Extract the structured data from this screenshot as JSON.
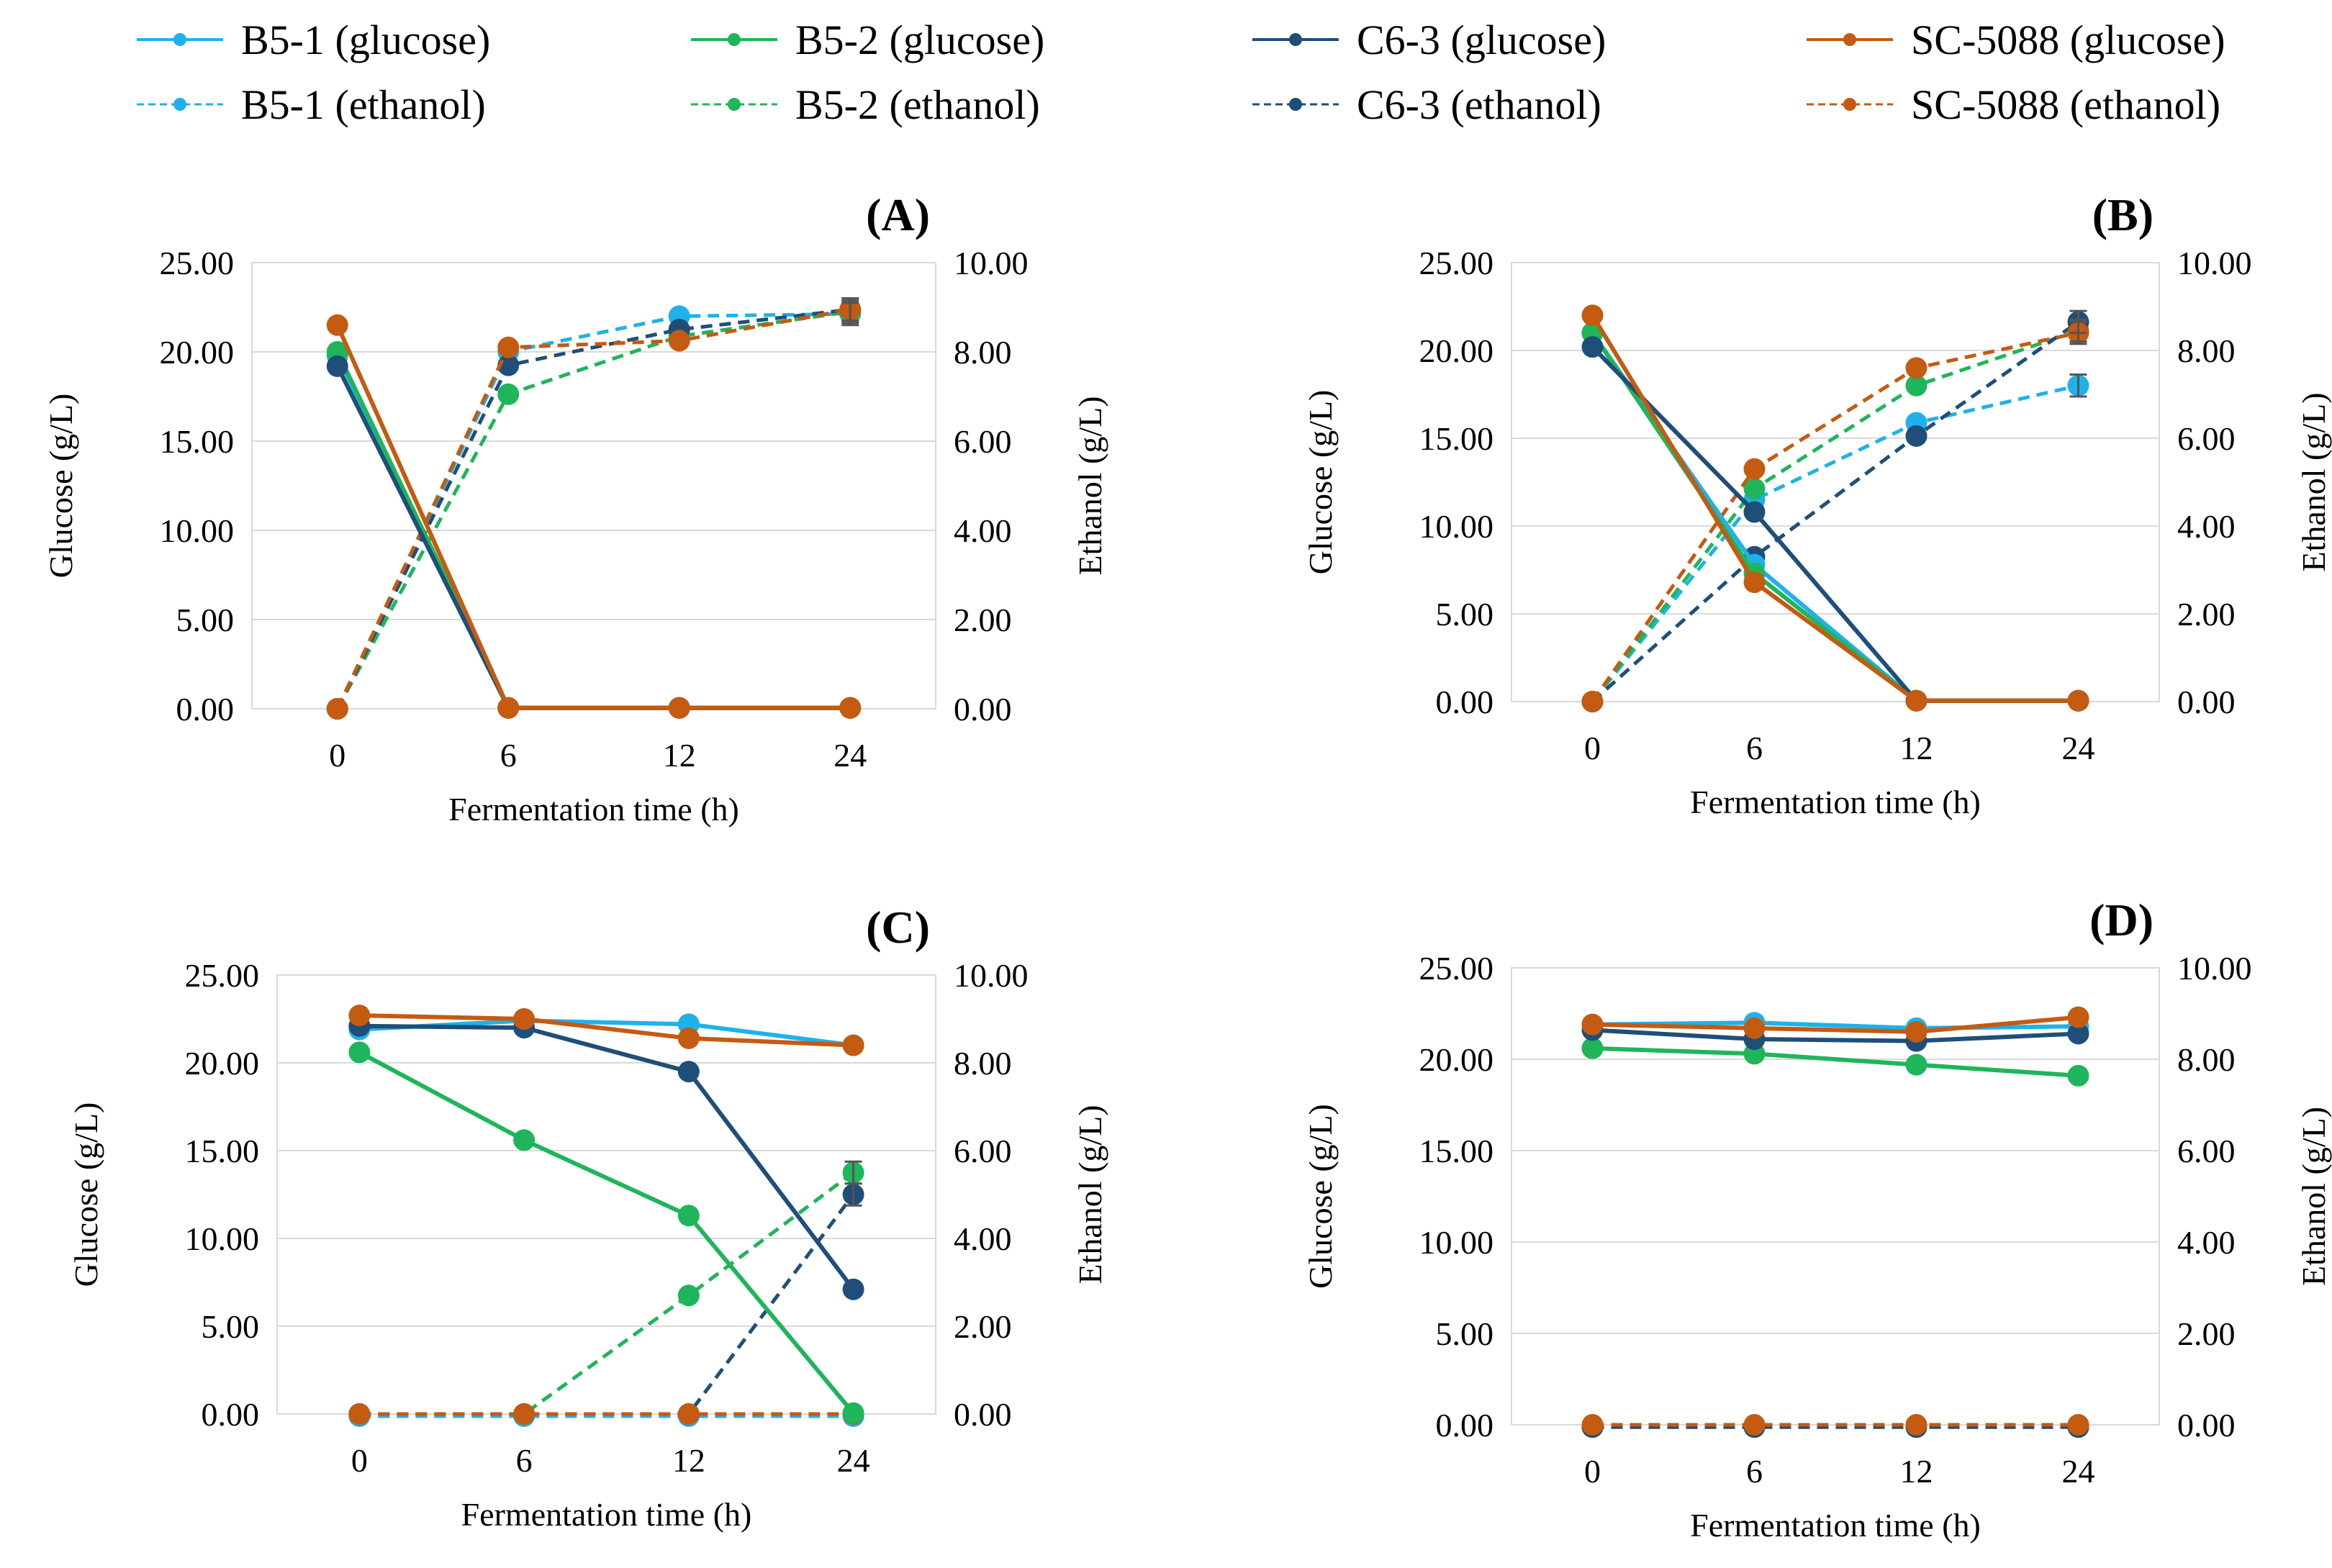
{
  "legend": [
    {
      "label": "B5-1 (glucose)",
      "color": "#1fb1ea",
      "dashed": false
    },
    {
      "label": "B5-1 (ethanol)",
      "color": "#1fb1ea",
      "dashed": true
    },
    {
      "label": "B5-2 (glucose)",
      "color": "#1fb55a",
      "dashed": false
    },
    {
      "label": "B5-2 (ethanol)",
      "color": "#1fb55a",
      "dashed": true
    },
    {
      "label": "C6-3  (glucose)",
      "color": "#1f4e79",
      "dashed": false
    },
    {
      "label": "C6-3  (ethanol)",
      "color": "#1f4e79",
      "dashed": true
    },
    {
      "label": "SC-5088 (glucose)",
      "color": "#c55a11",
      "dashed": false
    },
    {
      "label": "SC-5088 (ethanol)",
      "color": "#c55a11",
      "dashed": true
    }
  ],
  "chart_data": [
    {
      "type": "line",
      "title": "(A)",
      "categories": [
        "0",
        "6",
        "12",
        "24"
      ],
      "xlabel": "Fermentation time (h)",
      "ylabel": "Glucose (g/L)",
      "y2label": "Ethanol (g/L)",
      "ylim": [
        0,
        25
      ],
      "y2lim": [
        0,
        10
      ],
      "yticks": [
        "0.00",
        "5.00",
        "10.00",
        "15.00",
        "20.00",
        "25.00"
      ],
      "y2ticks": [
        "0.00",
        "2.00",
        "4.00",
        "6.00",
        "8.00",
        "10.00"
      ],
      "series": [
        {
          "name": "B5-1 (glucose)",
          "axis": "left",
          "values": [
            19.8,
            0.05,
            0.05,
            0.05
          ]
        },
        {
          "name": "B5-2 (glucose)",
          "axis": "left",
          "values": [
            20.0,
            0.05,
            0.05,
            0.05
          ]
        },
        {
          "name": "C6-3  (glucose)",
          "axis": "left",
          "values": [
            19.2,
            0.05,
            0.05,
            0.05
          ]
        },
        {
          "name": "SC-5088 (glucose)",
          "axis": "left",
          "values": [
            21.5,
            0.05,
            0.05,
            0.05
          ]
        },
        {
          "name": "B5-1 (ethanol)",
          "axis": "right",
          "values": [
            0.0,
            8.0,
            8.8,
            8.85
          ]
        },
        {
          "name": "B5-2 (ethanol)",
          "axis": "right",
          "values": [
            0.0,
            7.05,
            8.35,
            8.9
          ]
        },
        {
          "name": "C6-3  (ethanol)",
          "axis": "right",
          "values": [
            0.0,
            7.7,
            8.5,
            8.95
          ]
        },
        {
          "name": "SC-5088 (ethanol)",
          "axis": "right",
          "values": [
            0.0,
            8.1,
            8.25,
            8.95
          ]
        }
      ]
    },
    {
      "type": "line",
      "title": "(B)",
      "categories": [
        "0",
        "6",
        "12",
        "24"
      ],
      "xlabel": "Fermentation time (h)",
      "ylabel": "Glucose (g/L)",
      "y2label": "Ethanol (g/L)",
      "ylim": [
        0,
        25
      ],
      "y2lim": [
        0,
        10
      ],
      "yticks": [
        "0.00",
        "5.00",
        "10.00",
        "15.00",
        "20.00",
        "25.00"
      ],
      "y2ticks": [
        "0.00",
        "2.00",
        "4.00",
        "6.00",
        "8.00",
        "10.00"
      ],
      "series": [
        {
          "name": "B5-1 (glucose)",
          "axis": "left",
          "values": [
            21.0,
            7.8,
            0.05,
            0.05
          ]
        },
        {
          "name": "B5-2 (glucose)",
          "axis": "left",
          "values": [
            21.0,
            7.3,
            0.05,
            0.05
          ]
        },
        {
          "name": "C6-3  (glucose)",
          "axis": "left",
          "values": [
            20.2,
            10.8,
            0.05,
            0.05
          ]
        },
        {
          "name": "SC-5088 (glucose)",
          "axis": "left",
          "values": [
            22.0,
            6.8,
            0.05,
            0.05
          ]
        },
        {
          "name": "B5-1 (ethanol)",
          "axis": "right",
          "values": [
            0.0,
            4.6,
            6.35,
            7.2
          ]
        },
        {
          "name": "B5-2 (ethanol)",
          "axis": "right",
          "values": [
            0.0,
            4.85,
            7.2,
            8.45
          ]
        },
        {
          "name": "C6-3  (ethanol)",
          "axis": "right",
          "values": [
            0.0,
            3.3,
            6.05,
            8.65
          ]
        },
        {
          "name": "SC-5088 (ethanol)",
          "axis": "right",
          "values": [
            0.0,
            5.3,
            7.6,
            8.4
          ]
        }
      ]
    },
    {
      "type": "line",
      "title": "(C)",
      "categories": [
        "0",
        "6",
        "12",
        "24"
      ],
      "xlabel": "Fermentation time (h)",
      "ylabel": "Glucose (g/L)",
      "y2label": "Ethanol (g/L)",
      "ylim": [
        0,
        25
      ],
      "y2lim": [
        0,
        10
      ],
      "yticks": [
        "0.00",
        "5.00",
        "10.00",
        "15.00",
        "20.00",
        "25.00"
      ],
      "y2ticks": [
        "0.00",
        "2.00",
        "4.00",
        "6.00",
        "8.00",
        "10.00"
      ],
      "series": [
        {
          "name": "B5-1 (glucose)",
          "axis": "left",
          "values": [
            21.9,
            22.4,
            22.2,
            21.0
          ]
        },
        {
          "name": "B5-2 (glucose)",
          "axis": "left",
          "values": [
            20.6,
            15.6,
            11.3,
            0.05
          ]
        },
        {
          "name": "C6-3  (glucose)",
          "axis": "left",
          "values": [
            22.1,
            22.0,
            19.5,
            7.1
          ]
        },
        {
          "name": "SC-5088 (glucose)",
          "axis": "left",
          "values": [
            22.7,
            22.5,
            21.4,
            21.0
          ]
        },
        {
          "name": "B5-1 (ethanol)",
          "axis": "right",
          "values": [
            -0.05,
            -0.05,
            -0.05,
            -0.05
          ]
        },
        {
          "name": "B5-2 (ethanol)",
          "axis": "right",
          "values": [
            0.0,
            0.0,
            2.7,
            5.5
          ]
        },
        {
          "name": "C6-3  (ethanol)",
          "axis": "right",
          "values": [
            0.0,
            0.0,
            0.0,
            5.0
          ]
        },
        {
          "name": "SC-5088 (ethanol)",
          "axis": "right",
          "values": [
            0.0,
            0.0,
            0.0,
            0.0
          ]
        }
      ]
    },
    {
      "type": "line",
      "title": "(D)",
      "categories": [
        "0",
        "6",
        "12",
        "24"
      ],
      "xlabel": "Fermentation time (h)",
      "ylabel": "Glucose (g/L)",
      "y2label": "Ethanol (g/L)",
      "ylim": [
        0,
        25
      ],
      "y2lim": [
        0,
        10
      ],
      "yticks": [
        "0.00",
        "5.00",
        "10.00",
        "15.00",
        "20.00",
        "25.00"
      ],
      "y2ticks": [
        "0.00",
        "2.00",
        "4.00",
        "6.00",
        "8.00",
        "10.00"
      ],
      "series": [
        {
          "name": "B5-1 (glucose)",
          "axis": "left",
          "values": [
            21.9,
            22.0,
            21.7,
            21.8
          ]
        },
        {
          "name": "B5-2 (glucose)",
          "axis": "left",
          "values": [
            20.6,
            20.3,
            19.7,
            19.1
          ]
        },
        {
          "name": "C6-3  (glucose)",
          "axis": "left",
          "values": [
            21.6,
            21.1,
            21.0,
            21.4
          ]
        },
        {
          "name": "SC-5088 (glucose)",
          "axis": "left",
          "values": [
            21.9,
            21.7,
            21.5,
            22.3
          ]
        },
        {
          "name": "B5-1 (ethanol)",
          "axis": "right",
          "values": [
            -0.05,
            -0.05,
            -0.05,
            -0.05
          ]
        },
        {
          "name": "B5-2 (ethanol)",
          "axis": "right",
          "values": [
            -0.05,
            -0.05,
            -0.05,
            -0.05
          ]
        },
        {
          "name": "C6-3  (ethanol)",
          "axis": "right",
          "values": [
            -0.05,
            -0.05,
            -0.05,
            -0.05
          ]
        },
        {
          "name": "SC-5088 (ethanol)",
          "axis": "right",
          "values": [
            0.0,
            0.0,
            0.0,
            0.0
          ]
        }
      ]
    }
  ]
}
